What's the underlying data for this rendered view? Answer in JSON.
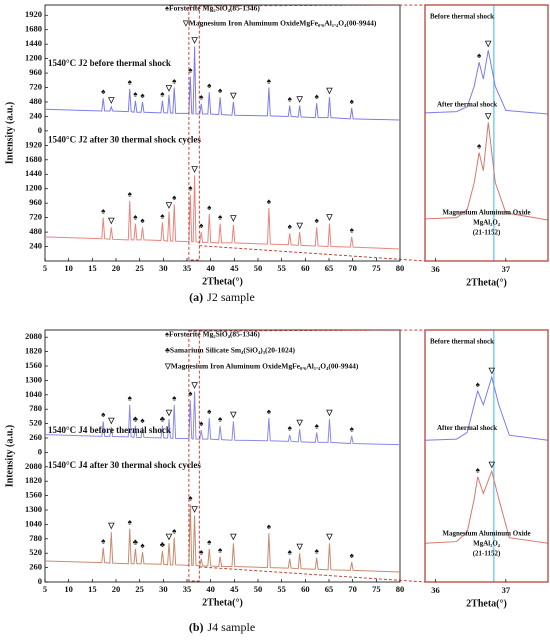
{
  "chart_data": [
    {
      "type": "line",
      "xlabel": "2Theta(°)",
      "ylabel": "Intensity (a.u.)",
      "caption_tag": "(a)",
      "caption": "J2 sample",
      "legend": [
        "♠Forsterite Mg₂SiO₄(85-1346)",
        "▽Magnesium Iron Aluminum OxideMgFe₀.₆Al₁.₄O₄(00-9944)"
      ],
      "xlim": [
        5,
        80
      ],
      "xticks": [
        5,
        10,
        15,
        20,
        25,
        30,
        35,
        40,
        45,
        50,
        55,
        60,
        65,
        70,
        75,
        80
      ],
      "ylim": [
        0,
        4250
      ],
      "yticks": [
        240,
        480,
        720,
        960,
        1200,
        1440,
        1680,
        1920,
        {
          "value": 2160,
          "label": "0"
        },
        {
          "value": 2400,
          "label": "240"
        },
        {
          "value": 2640,
          "label": "480"
        },
        {
          "value": 2880,
          "label": "720"
        },
        {
          "value": 3120,
          "label": "960"
        },
        {
          "value": 3360,
          "label": "1200"
        },
        {
          "value": 3600,
          "label": "1440"
        },
        {
          "value": 3840,
          "label": "1680"
        },
        {
          "value": 4080,
          "label": "1920"
        }
      ],
      "x": [
        5,
        17.0,
        17.3,
        17.6,
        18.7,
        19.0,
        19.3,
        22.6,
        22.9,
        23.2,
        23.8,
        24.1,
        24.4,
        25.3,
        25.6,
        25.9,
        29.5,
        29.8,
        30.1,
        30.9,
        31.2,
        31.5,
        32.0,
        32.3,
        32.6,
        35.4,
        35.7,
        36.0,
        36.3,
        36.6,
        36.9,
        37.7,
        38.0,
        38.3,
        39.4,
        39.7,
        40.0,
        41.7,
        42.0,
        42.3,
        44.5,
        44.8,
        45.1,
        52.0,
        52.3,
        52.6,
        56.4,
        56.7,
        57.0,
        58.5,
        58.8,
        59.1,
        62.1,
        62.4,
        62.7,
        64.8,
        65.1,
        65.4,
        69.5,
        69.8,
        70.1,
        80
      ],
      "peak_marks": [
        "♠",
        "▽",
        "♠",
        "♠",
        "♠",
        "♠",
        "▽",
        "♠",
        "♠",
        "▽",
        "♠",
        "♠",
        "♠",
        "▽",
        "♠",
        "♠",
        "▽",
        "♠",
        "▽",
        "♠"
      ],
      "series": [
        {
          "name": "1540°C J2 before thermal shock",
          "color": "#7c7cf0",
          "values": [
            2520,
            2490,
            2700,
            2490,
            2490,
            2560,
            2490,
            2480,
            2860,
            2480,
            2470,
            2660,
            2470,
            2470,
            2640,
            2470,
            2460,
            2660,
            2460,
            2460,
            2760,
            2460,
            2450,
            2880,
            2450,
            2450,
            3060,
            2450,
            2440,
            3560,
            2440,
            2440,
            2610,
            2440,
            2440,
            2800,
            2440,
            2430,
            2720,
            2430,
            2420,
            2640,
            2420,
            2410,
            2880,
            2410,
            2400,
            2580,
            2400,
            2390,
            2580,
            2390,
            2380,
            2620,
            2380,
            2380,
            2720,
            2380,
            2360,
            2540,
            2360,
            2340
          ]
        },
        {
          "name": "1540°C J2 after 30 thermal shock cycles",
          "color": "#e8857c",
          "values": [
            400,
            370,
            720,
            370,
            360,
            560,
            360,
            350,
            1000,
            350,
            350,
            620,
            350,
            350,
            560,
            350,
            340,
            640,
            340,
            330,
            820,
            330,
            330,
            940,
            330,
            320,
            1100,
            320,
            320,
            1420,
            320,
            310,
            480,
            310,
            310,
            780,
            310,
            300,
            620,
            300,
            300,
            600,
            300,
            280,
            880,
            280,
            270,
            460,
            270,
            260,
            480,
            260,
            250,
            560,
            250,
            240,
            620,
            240,
            230,
            400,
            230,
            200
          ]
        }
      ],
      "inset": {
        "xlabel": "2Theta(°)",
        "xlim": [
          35.85,
          37.6
        ],
        "xticks": [
          36,
          37
        ],
        "ylim": [
          0,
          4250
        ],
        "reference_line": 36.83,
        "reference_color": "#33bbee",
        "labels": [
          "Before thermal shock",
          "After thermal shock"
        ],
        "phase": [
          "Magnesium Aluminum Oxide",
          "MgAl₂O₄",
          "(21-1152)"
        ],
        "peak_marks": [
          "♠",
          "▽"
        ],
        "x": [
          35.85,
          36.3,
          36.45,
          36.55,
          36.62,
          36.68,
          36.75,
          36.85,
          37.0,
          37.6
        ],
        "series": [
          {
            "color": "#7c7cf0",
            "values": [
              2460,
              2480,
              2560,
              2900,
              3300,
              3020,
              3500,
              2900,
              2500,
              2440
            ]
          },
          {
            "color": "#d9776d",
            "values": [
              700,
              720,
              850,
              1300,
              1800,
              1500,
              2300,
              1300,
              800,
              680
            ]
          }
        ]
      }
    },
    {
      "type": "line",
      "xlabel": "2Theta(°)",
      "ylabel": "Intensity (a.u.)",
      "caption_tag": "(b)",
      "caption": "J4 sample",
      "legend": [
        "♠Forsterite Mg₂SiO₄(85-1346)",
        "♣Samarium Silicate Sm₄(SiO₄)₃(20-1024)",
        "▽Magnesium Iron Aluminum OxideMgFe₀.₆Al₁.₄O₄(00-9944)"
      ],
      "xlim": [
        5,
        80
      ],
      "xticks": [
        5,
        10,
        15,
        20,
        25,
        30,
        35,
        40,
        45,
        50,
        55,
        60,
        65,
        70,
        75,
        80
      ],
      "ylim": [
        0,
        4550
      ],
      "yticks": [
        0,
        260,
        520,
        780,
        1040,
        1300,
        1560,
        1820,
        2080,
        {
          "value": 2340,
          "label": "0"
        },
        {
          "value": 2600,
          "label": "260"
        },
        {
          "value": 2860,
          "label": "520"
        },
        {
          "value": 3120,
          "label": "780"
        },
        {
          "value": 3380,
          "label": "1040"
        },
        {
          "value": 3640,
          "label": "1300"
        },
        {
          "value": 3900,
          "label": "1560"
        },
        {
          "value": 4160,
          "label": "1820"
        },
        {
          "value": 4420,
          "label": "2080"
        }
      ],
      "x": [
        5,
        17.0,
        17.3,
        17.6,
        18.7,
        19.0,
        19.3,
        22.6,
        22.9,
        23.2,
        23.8,
        24.1,
        24.4,
        25.3,
        25.6,
        25.9,
        29.5,
        29.8,
        30.1,
        30.9,
        31.2,
        31.5,
        32.0,
        32.3,
        32.6,
        35.4,
        35.7,
        36.0,
        36.3,
        36.6,
        36.9,
        37.7,
        38.0,
        38.3,
        39.4,
        39.7,
        40.0,
        41.7,
        42.0,
        42.3,
        44.5,
        44.8,
        45.1,
        52.0,
        52.3,
        52.6,
        56.4,
        56.7,
        57.0,
        58.5,
        58.8,
        59.1,
        62.1,
        62.4,
        62.7,
        64.8,
        65.1,
        65.4,
        69.5,
        69.8,
        70.1,
        80
      ],
      "peak_marks": [
        "♠",
        "▽",
        "♠",
        "♣",
        "♠",
        "♣",
        "▽",
        "♠",
        "♠",
        "▽",
        "♠",
        "♠",
        "♠",
        "▽",
        "♠",
        "♠",
        "▽",
        "♠",
        "▽",
        "♠"
      ],
      "series": [
        {
          "name": "1540°C J4 before thermal shock",
          "color": "#8a8ae8",
          "values": [
            2660,
            2630,
            2900,
            2630,
            2630,
            2800,
            2630,
            2620,
            3200,
            2620,
            2610,
            2820,
            2610,
            2610,
            2800,
            2610,
            2600,
            2820,
            2600,
            2600,
            2940,
            2600,
            2590,
            3200,
            2590,
            2590,
            3280,
            2590,
            2580,
            3440,
            2580,
            2580,
            2740,
            2580,
            2580,
            2960,
            2580,
            2570,
            2820,
            2570,
            2560,
            2900,
            2560,
            2550,
            2960,
            2550,
            2540,
            2660,
            2540,
            2530,
            2760,
            2530,
            2520,
            2700,
            2520,
            2520,
            2940,
            2520,
            2500,
            2640,
            2500,
            2480
          ]
        },
        {
          "name": "1540°C J4 after 30 thermal shock cycles",
          "color": "#c98a6e",
          "values": [
            380,
            350,
            620,
            350,
            340,
            900,
            340,
            330,
            960,
            330,
            330,
            600,
            330,
            330,
            540,
            330,
            320,
            560,
            320,
            310,
            700,
            310,
            310,
            800,
            310,
            300,
            1400,
            300,
            300,
            1200,
            300,
            290,
            420,
            290,
            290,
            600,
            290,
            280,
            460,
            280,
            280,
            700,
            280,
            260,
            880,
            260,
            250,
            420,
            250,
            240,
            520,
            240,
            230,
            440,
            230,
            220,
            700,
            220,
            210,
            360,
            210,
            180
          ]
        }
      ],
      "inset": {
        "xlabel": "2Theta(°)",
        "xlim": [
          35.85,
          37.6
        ],
        "xticks": [
          36,
          37
        ],
        "ylim": [
          0,
          4550
        ],
        "reference_line": 36.83,
        "reference_color": "#33bbee",
        "labels": [
          "Before thermal shock",
          "After thermal shock"
        ],
        "phase": [
          "Magnesium Aluminum Oxide",
          "MgAl₂O₄",
          "(21-1152)"
        ],
        "peak_marks": [
          "♠",
          "▽"
        ],
        "x": [
          35.85,
          36.3,
          36.45,
          36.55,
          36.6,
          36.68,
          36.8,
          36.9,
          37.05,
          37.6
        ],
        "series": [
          {
            "color": "#7c7cf0",
            "values": [
              2560,
              2580,
              2700,
              3200,
              3450,
              3200,
              3700,
              3200,
              2650,
              2560
            ]
          },
          {
            "color": "#d9776d",
            "values": [
              700,
              730,
              900,
              1500,
              1900,
              1600,
              2000,
              1500,
              800,
              700
            ]
          }
        ]
      }
    }
  ]
}
